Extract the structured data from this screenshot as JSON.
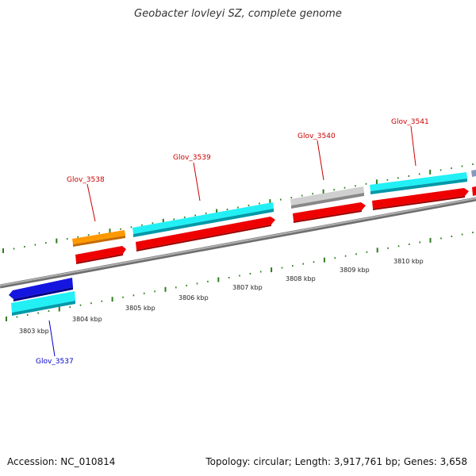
{
  "title": "Geobacter lovleyi SZ, complete genome",
  "footer": {
    "accession": "Accession: NC_010814",
    "info": "Topology: circular; Length: 3,917,761 bp; Genes: 3,658"
  },
  "colors": {
    "backbone": "#8a8a8a",
    "tick": "#2e7d1e",
    "forward_label": "#cc0000",
    "reverse_label": "#0000cc",
    "cds_red": "#ee0000",
    "gene_cyan": "#00e5ee",
    "gene_orange": "#ff9900",
    "gene_grey": "#c0c0c0",
    "gene_blue": "#1010dd"
  },
  "kbp_labels": [
    "3803 kbp",
    "3804 kbp",
    "3805 kbp",
    "3806 kbp",
    "3807 kbp",
    "3808 kbp",
    "3809 kbp",
    "3810 kbp"
  ],
  "genes": [
    {
      "name": "Glov_3537",
      "strand": "reverse"
    },
    {
      "name": "Glov_3538",
      "strand": "forward"
    },
    {
      "name": "Glov_3539",
      "strand": "forward"
    },
    {
      "name": "Glov_3540",
      "strand": "forward"
    },
    {
      "name": "Glov_3541",
      "strand": "forward"
    }
  ]
}
